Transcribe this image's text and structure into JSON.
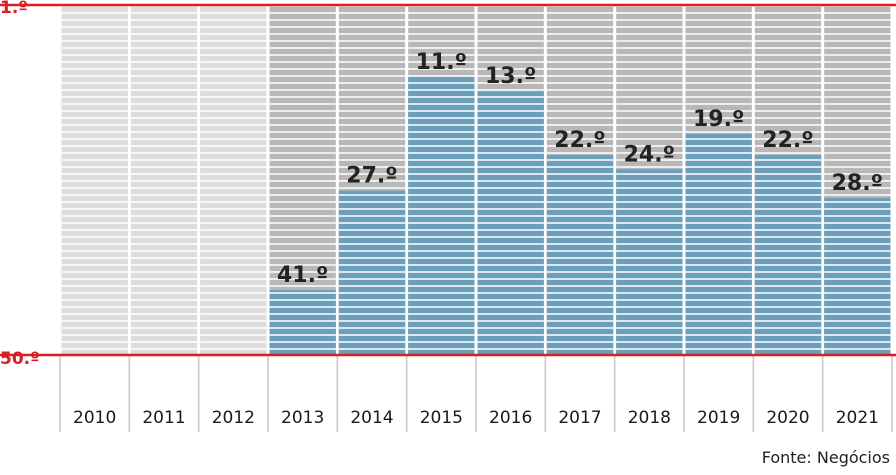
{
  "chart_data": {
    "type": "bar",
    "categories": [
      "2010",
      "2011",
      "2012",
      "2013",
      "2014",
      "2015",
      "2016",
      "2017",
      "2018",
      "2019",
      "2020",
      "2021"
    ],
    "series": [
      {
        "values": [
          null,
          null,
          null,
          41,
          27,
          11,
          13,
          22,
          24,
          19,
          22,
          28
        ]
      }
    ],
    "value_labels": [
      "",
      "",
      "",
      "41.º",
      "27.º",
      "11.º",
      "13.º",
      "22.º",
      "24.º",
      "19.º",
      "22.º",
      "28.º"
    ],
    "y_axis_labels": {
      "top": "1.º",
      "bottom": "50.º"
    },
    "ylim": [
      1,
      50
    ],
    "y_inverted": true,
    "grid": false,
    "source": "Fonte: Negócios"
  },
  "colors": {
    "bar_fill": "#6a9fbc",
    "background_ranked": "#b8b8b8",
    "background_unranked": "#dcdcdc",
    "axis_line": "#d71f26"
  }
}
